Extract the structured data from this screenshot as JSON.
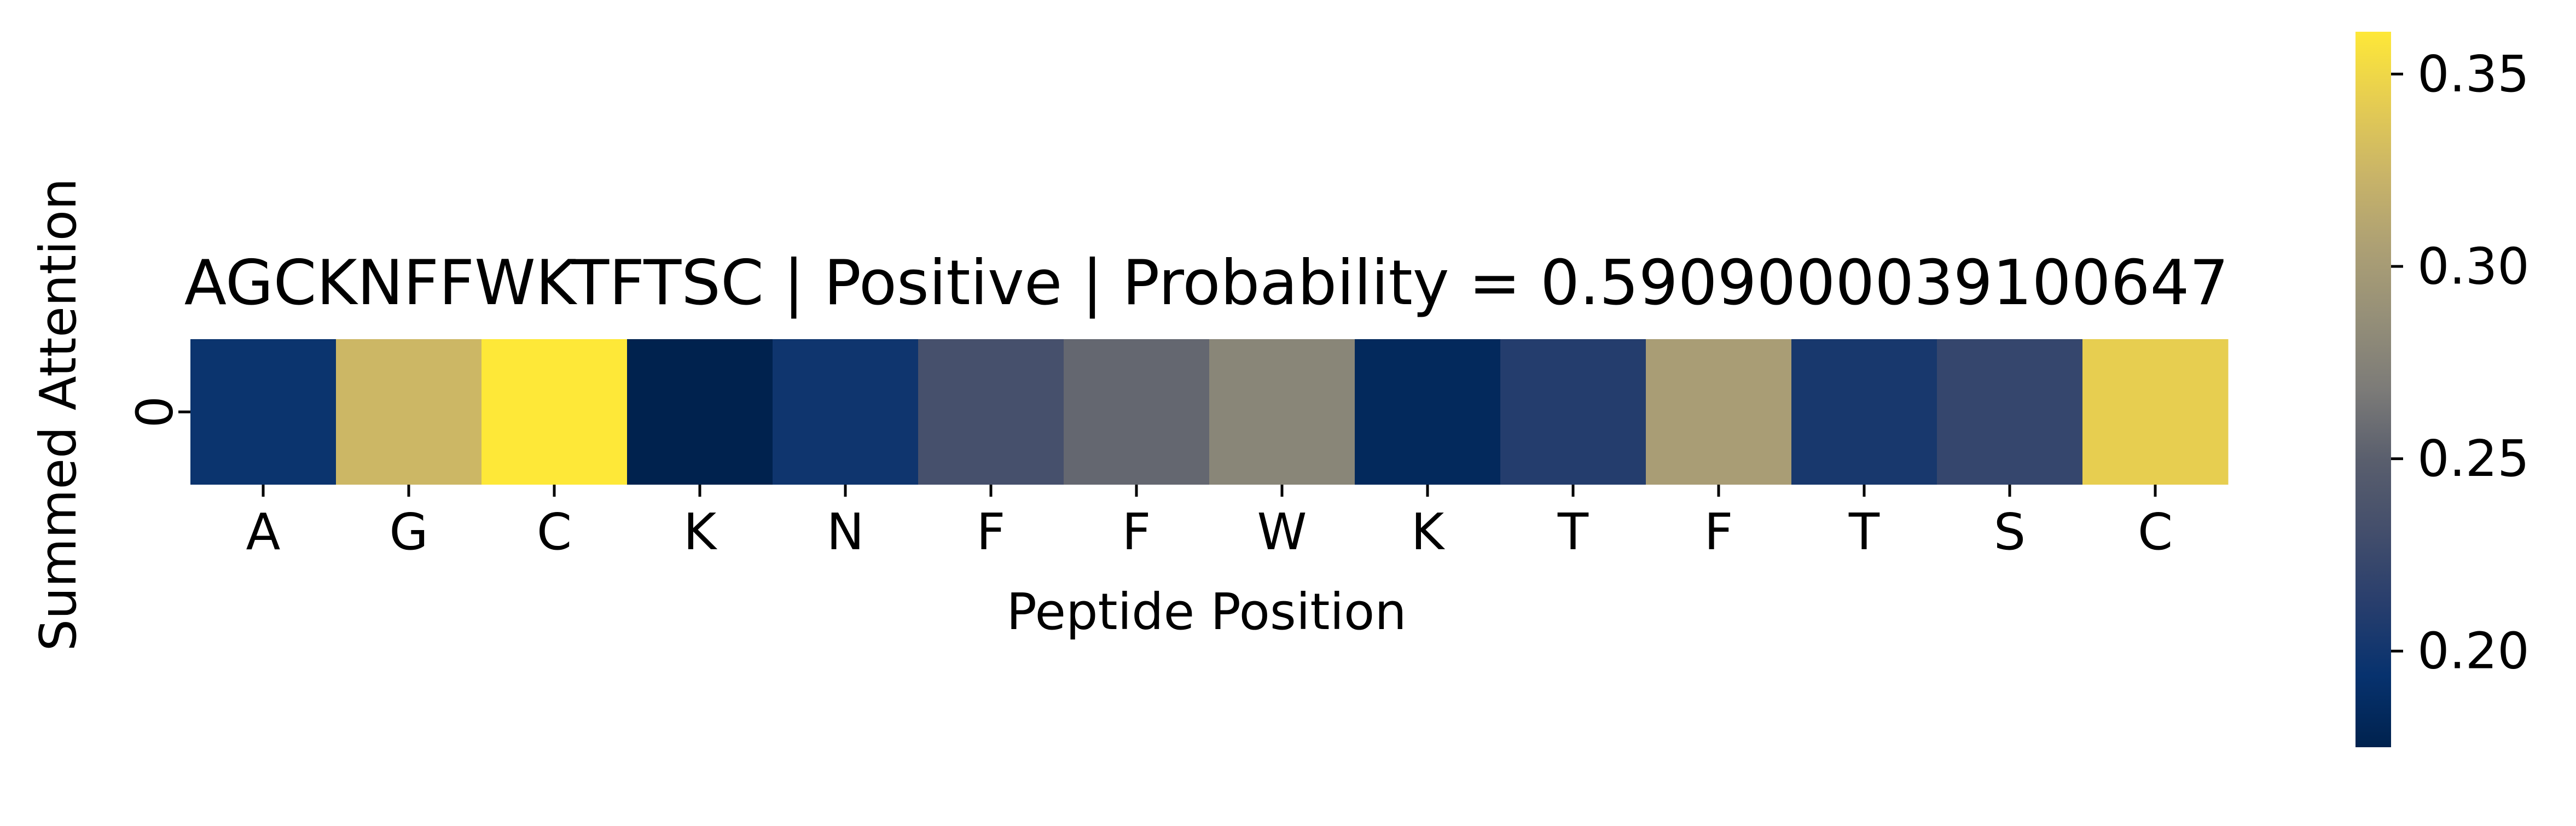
{
  "chart_data": {
    "type": "heatmap",
    "title": "AGCKNFFWKTFTSC | Positive | Probability = 0.5909000039100647",
    "xlabel": "Peptide Position",
    "ylabel": "Summed Attention",
    "x_ticklabels": [
      "A",
      "G",
      "C",
      "K",
      "N",
      "F",
      "F",
      "W",
      "K",
      "T",
      "F",
      "T",
      "S",
      "C"
    ],
    "y_ticklabels": [
      "0"
    ],
    "values": [
      [
        0.196,
        0.326,
        0.361,
        0.175,
        0.198,
        0.233,
        0.255,
        0.278,
        0.183,
        0.21,
        0.302,
        0.203,
        0.221,
        0.344
      ]
    ],
    "colormap": "cividis",
    "colorbar": {
      "range": [
        0.175,
        0.361
      ],
      "ticks": [
        0.2,
        0.25,
        0.3,
        0.35
      ],
      "ticklabels": [
        "0.20",
        "0.25",
        "0.30",
        "0.35"
      ]
    }
  }
}
